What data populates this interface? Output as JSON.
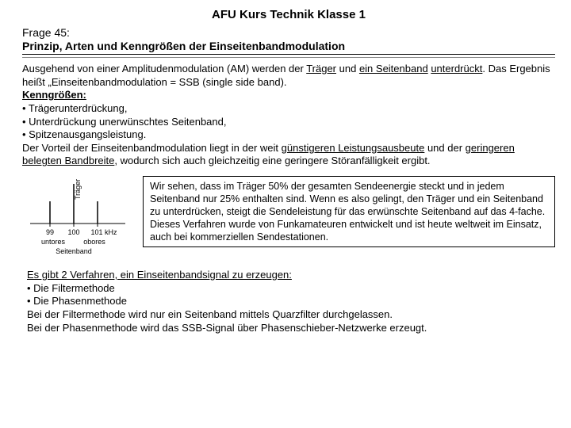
{
  "title": "AFU Kurs Technik Klasse 1",
  "question_num": "Frage 45:",
  "question_text": "Prinzip, Arten und Kenngrößen der Einseitenbandmodulation",
  "intro_parts": {
    "p1a": "Ausgehend von einer Amplitudenmodulation (AM) werden der ",
    "p1b": "Träger",
    "p1c": " und ",
    "p1d": "ein Seitenband",
    "p1e": " ",
    "p1f": "unterdrückt",
    "p1g": ". Das Ergebnis heißt „Einseitenbandmodulation = SSB (single side band).",
    "kenn": "Kenngrößen:",
    "b1": "• Trägerunterdrückung,",
    "b2": "• Unterdrückung unerwünschtes Seitenband,",
    "b3": "• Spitzenausgangsleistung.",
    "p2a": "Der Vorteil der Einseitenbandmodulation liegt in der weit ",
    "p2b": "günstigeren Leistungsausbeute",
    "p2c": " und der ",
    "p2d": "geringeren belegten Bandbreite",
    "p2e": ", wodurch sich auch gleichzeitig eine geringere Störanfälligkeit ergibt."
  },
  "box_text": "Wir sehen, dass im Träger 50% der gesamten Sendeenergie steckt und in jedem Seitenband nur 25% enthalten sind. Wenn es also gelingt, den Träger und ein Seitenband zu unterdrücken, steigt die Sendeleistung für das erwünschte Seitenband auf das 4-fache.   Dieses Verfahren wurde von Funkamateuren entwickelt und ist heute weltweit im Einsatz, auch bei kommerziellen Sendestationen.",
  "bottom": {
    "head": "Es gibt 2 Verfahren, ein Einseitenbandsignal zu erzeugen:",
    "b1": "• Die Filtermethode",
    "b2": "• Die Phasenmethode",
    "l1": "Bei der Filtermethode wird nur ein Seitenband mittels Quarzfilter durchgelassen.",
    "l2": "Bei der Phasenmethode wird das SSB-Signal über Phasenschieber-Netzwerke erzeugt."
  },
  "diagram": {
    "carrier_label": "Träger",
    "x_ticks": [
      "99",
      "100",
      "101 kHz"
    ],
    "lower_label": "untores",
    "upper_label": "obores",
    "sideband_label": "Seitenband",
    "line_color": "#000000",
    "text_color": "#000000",
    "font_size_small": 9,
    "carrier_height": 50,
    "side_height": 28,
    "baseline_y": 60,
    "x_positions": [
      35,
      65,
      95
    ],
    "width": 140,
    "height": 105
  }
}
